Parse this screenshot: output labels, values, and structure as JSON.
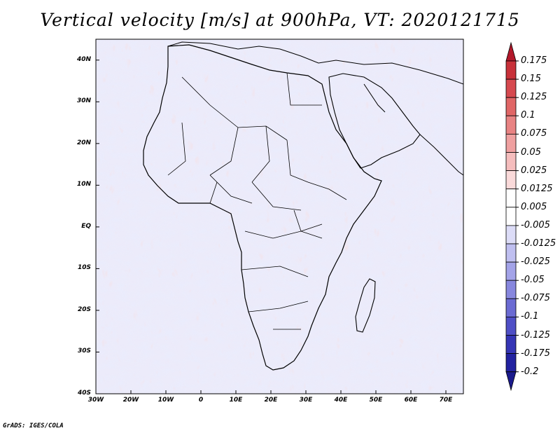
{
  "title": "Vertical velocity [m/s] at 900hPa, VT: 2020121715",
  "credit": "GrADS: IGES/COLA",
  "map": {
    "region": "Africa",
    "lon_range": [
      -30,
      75
    ],
    "lat_range": [
      -40,
      45
    ],
    "lat_labels": [
      "40N",
      "30N",
      "20N",
      "10N",
      "EQ",
      "10S",
      "20S",
      "30S",
      "40S"
    ],
    "lat_values": [
      40,
      30,
      20,
      10,
      0,
      -10,
      -20,
      -30,
      -40
    ],
    "lon_labels": [
      "30W",
      "20W",
      "10W",
      "0",
      "10E",
      "20E",
      "30E",
      "40E",
      "50E",
      "60E",
      "70E"
    ],
    "lon_values": [
      -30,
      -20,
      -10,
      0,
      10,
      20,
      30,
      40,
      50,
      60,
      70
    ]
  },
  "colorbar": {
    "levels": [
      "0.175",
      "0.15",
      "0.125",
      "0.1",
      "0.075",
      "0.05",
      "0.025",
      "0.0125",
      "0.005",
      "-0.005",
      "-0.0125",
      "-0.025",
      "-0.05",
      "-0.075",
      "-0.1",
      "-0.125",
      "-0.175",
      "-0.2"
    ],
    "colors": [
      "#b2182b",
      "#c8313a",
      "#d6494f",
      "#e06666",
      "#e88383",
      "#efa0a0",
      "#f5bdbd",
      "#fadada",
      "#ffffff",
      "#ffffff",
      "#dcdcf7",
      "#bfbff0",
      "#a3a3e8",
      "#8787de",
      "#6b6bd3",
      "#4f4fc6",
      "#3535b5",
      "#2222a0",
      "#1a1a8c"
    ]
  }
}
